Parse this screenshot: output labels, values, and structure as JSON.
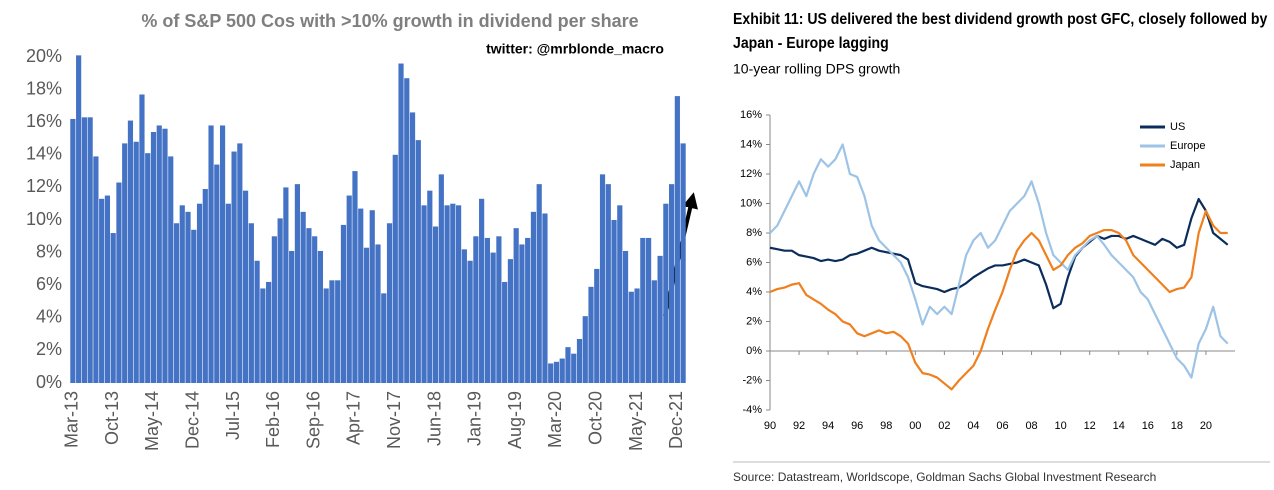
{
  "chart_data": [
    {
      "type": "bar",
      "title": "% of S&P 500 Cos with >10% growth in dividend per share",
      "annotation": "twitter: @mrblonde_macro",
      "color": "#4472c4",
      "categories": [
        "Mar-13",
        null,
        null,
        null,
        null,
        null,
        null,
        "Oct-13",
        null,
        null,
        null,
        null,
        null,
        null,
        "May-14",
        null,
        null,
        null,
        null,
        null,
        null,
        "Dec-14",
        null,
        null,
        null,
        null,
        null,
        null,
        "Jul-15",
        null,
        null,
        null,
        null,
        null,
        null,
        "Feb-16",
        null,
        null,
        null,
        null,
        null,
        null,
        "Sep-16",
        null,
        null,
        null,
        null,
        null,
        null,
        "Apr-17",
        null,
        null,
        null,
        null,
        null,
        null,
        "Nov-17",
        null,
        null,
        null,
        null,
        null,
        null,
        "Jun-18",
        null,
        null,
        null,
        null,
        null,
        null,
        "Jan-19",
        null,
        null,
        null,
        null,
        null,
        null,
        "Aug-19",
        null,
        null,
        null,
        null,
        null,
        null,
        "Mar-20",
        null,
        null,
        null,
        null,
        null,
        null,
        "Oct-20",
        null,
        null,
        null,
        null,
        null,
        null,
        "May-21",
        null,
        null,
        null,
        null,
        null,
        null,
        "Dec-21",
        null
      ],
      "values": [
        16.2,
        20.1,
        16.3,
        16.3,
        13.9,
        11.3,
        11.5,
        9.2,
        12.3,
        14.7,
        16.1,
        14.8,
        17.7,
        14.1,
        15.4,
        15.8,
        15.6,
        13.9,
        9.8,
        10.9,
        10.5,
        9.4,
        11.0,
        11.9,
        15.8,
        13.4,
        15.8,
        11.0,
        14.2,
        14.7,
        11.8,
        9.8,
        7.5,
        5.8,
        6.2,
        9.0,
        10.1,
        12.0,
        8.1,
        12.2,
        10.5,
        9.5,
        9.0,
        8.1,
        5.8,
        6.3,
        6.3,
        9.7,
        11.5,
        13.0,
        10.7,
        8.3,
        10.6,
        8.5,
        5.5,
        9.8,
        14.0,
        19.6,
        18.7,
        16.6,
        14.9,
        10.9,
        11.8,
        9.6,
        12.8,
        10.9,
        11.0,
        10.9,
        8.2,
        7.5,
        9.0,
        11.3,
        8.9,
        8.0,
        9.0,
        6.2,
        7.6,
        9.5,
        8.5,
        8.9,
        10.5,
        12.2,
        10.4,
        1.2,
        1.3,
        1.5,
        2.2,
        1.8,
        2.7,
        4.1,
        5.9,
        7.0,
        12.8,
        12.2,
        10.0,
        10.9,
        8.1,
        5.6,
        5.8,
        8.9,
        8.9,
        6.3,
        7.8,
        11.0,
        12.2,
        17.6,
        14.7
      ],
      "ylim": [
        0,
        20
      ],
      "yticks": [
        {
          "value": 0,
          "label": "0%"
        },
        {
          "value": 2,
          "label": "2%"
        },
        {
          "value": 4,
          "label": "4%"
        },
        {
          "value": 6,
          "label": "6%"
        },
        {
          "value": 8,
          "label": "8%"
        },
        {
          "value": 10,
          "label": "10%"
        },
        {
          "value": 12,
          "label": "12%"
        },
        {
          "value": 14,
          "label": "14%"
        },
        {
          "value": 16,
          "label": "16%"
        },
        {
          "value": 18,
          "label": "18%"
        },
        {
          "value": 20,
          "label": "20%"
        }
      ],
      "grid": false
    },
    {
      "type": "line",
      "title": "Exhibit 11: US delivered the best dividend growth post GFC, closely followed by Japan - Europe lagging",
      "subtitle": "10-year rolling DPS growth",
      "source": "Source: Datastream, Worldscope, Goldman Sachs Global Investment Research",
      "legend": "upper right",
      "x": [
        1990,
        1990.5,
        1991,
        1991.5,
        1992,
        1992.5,
        1993,
        1993.5,
        1994,
        1994.5,
        1995,
        1995.5,
        1996,
        1996.5,
        1997,
        1997.5,
        1998,
        1998.5,
        1999,
        1999.5,
        2000,
        2000.5,
        2001,
        2001.5,
        2002,
        2002.5,
        2003,
        2003.5,
        2004,
        2004.5,
        2005,
        2005.5,
        2006,
        2006.5,
        2007,
        2007.5,
        2008,
        2008.5,
        2009,
        2009.5,
        2010,
        2010.5,
        2011,
        2011.5,
        2012,
        2012.5,
        2013,
        2013.5,
        2014,
        2014.5,
        2015,
        2015.5,
        2016,
        2016.5,
        2017,
        2017.5,
        2018,
        2018.5,
        2019,
        2019.5,
        2020,
        2020.5,
        2021,
        2021.5
      ],
      "series": [
        {
          "name": "US",
          "color": "#0b2d5b",
          "values": [
            7.0,
            6.9,
            6.8,
            6.8,
            6.5,
            6.4,
            6.3,
            6.1,
            6.2,
            6.1,
            6.2,
            6.5,
            6.6,
            6.8,
            7.0,
            6.8,
            6.7,
            6.6,
            6.5,
            6.2,
            4.6,
            4.4,
            4.3,
            4.2,
            4.0,
            4.2,
            4.3,
            4.6,
            5.0,
            5.3,
            5.6,
            5.8,
            5.8,
            5.9,
            6.0,
            6.2,
            6.0,
            5.8,
            4.5,
            2.9,
            3.2,
            5.0,
            6.4,
            7.0,
            7.4,
            7.8,
            7.6,
            7.8,
            7.8,
            7.6,
            7.8,
            7.6,
            7.4,
            7.2,
            7.6,
            7.4,
            7.0,
            7.2,
            9.0,
            10.3,
            9.5,
            8.0,
            7.6,
            7.2
          ]
        },
        {
          "name": "Europe",
          "color": "#9dc3e6",
          "values": [
            8.0,
            8.5,
            9.5,
            10.5,
            11.5,
            10.5,
            12.0,
            13.0,
            12.5,
            13.0,
            14.0,
            12.0,
            11.8,
            10.5,
            8.5,
            7.5,
            7.0,
            6.5,
            6.0,
            5.0,
            3.5,
            1.8,
            3.0,
            2.5,
            3.0,
            2.5,
            4.5,
            6.5,
            7.5,
            8.0,
            7.0,
            7.5,
            8.5,
            9.5,
            10.0,
            10.5,
            11.5,
            10.0,
            8.0,
            6.5,
            6.0,
            5.5,
            6.5,
            7.0,
            7.5,
            7.8,
            7.2,
            6.5,
            6.0,
            5.5,
            5.0,
            4.0,
            3.5,
            2.5,
            1.5,
            0.5,
            -0.5,
            -1.0,
            -1.8,
            0.5,
            1.5,
            3.0,
            1.0,
            0.5
          ]
        },
        {
          "name": "Japan",
          "color": "#f07f1e",
          "values": [
            4.0,
            4.2,
            4.3,
            4.5,
            4.6,
            3.8,
            3.5,
            3.2,
            2.8,
            2.5,
            2.0,
            1.8,
            1.2,
            1.0,
            1.2,
            1.4,
            1.2,
            1.3,
            1.0,
            0.5,
            -0.8,
            -1.5,
            -1.6,
            -1.8,
            -2.2,
            -2.6,
            -2.0,
            -1.5,
            -1.0,
            0.0,
            1.5,
            2.8,
            4.0,
            5.5,
            6.8,
            7.5,
            8.0,
            7.5,
            6.5,
            5.5,
            5.8,
            6.5,
            7.0,
            7.3,
            7.8,
            8.0,
            8.2,
            8.2,
            8.0,
            7.5,
            6.5,
            6.0,
            5.5,
            5.0,
            4.5,
            4.0,
            4.2,
            4.3,
            5.0,
            8.0,
            9.5,
            8.5,
            8.0,
            8.0
          ]
        }
      ],
      "xlim": [
        1990,
        2022
      ],
      "xticks": [
        {
          "value": 1990,
          "label": "90"
        },
        {
          "value": 1992,
          "label": "92"
        },
        {
          "value": 1994,
          "label": "94"
        },
        {
          "value": 1996,
          "label": "96"
        },
        {
          "value": 1998,
          "label": "98"
        },
        {
          "value": 2000,
          "label": "00"
        },
        {
          "value": 2002,
          "label": "02"
        },
        {
          "value": 2004,
          "label": "04"
        },
        {
          "value": 2006,
          "label": "06"
        },
        {
          "value": 2008,
          "label": "08"
        },
        {
          "value": 2010,
          "label": "10"
        },
        {
          "value": 2012,
          "label": "12"
        },
        {
          "value": 2014,
          "label": "14"
        },
        {
          "value": 2016,
          "label": "16"
        },
        {
          "value": 2018,
          "label": "18"
        },
        {
          "value": 2020,
          "label": "20"
        }
      ],
      "ylim": [
        -4,
        16
      ],
      "yticks": [
        {
          "value": -4,
          "label": "-4%"
        },
        {
          "value": -2,
          "label": "-2%"
        },
        {
          "value": 0,
          "label": "0%"
        },
        {
          "value": 2,
          "label": "2%"
        },
        {
          "value": 4,
          "label": "4%"
        },
        {
          "value": 6,
          "label": "6%"
        },
        {
          "value": 8,
          "label": "8%"
        },
        {
          "value": 10,
          "label": "10%"
        },
        {
          "value": 12,
          "label": "12%"
        },
        {
          "value": 14,
          "label": "14%"
        },
        {
          "value": 16,
          "label": "16%"
        }
      ],
      "grid": false
    }
  ]
}
